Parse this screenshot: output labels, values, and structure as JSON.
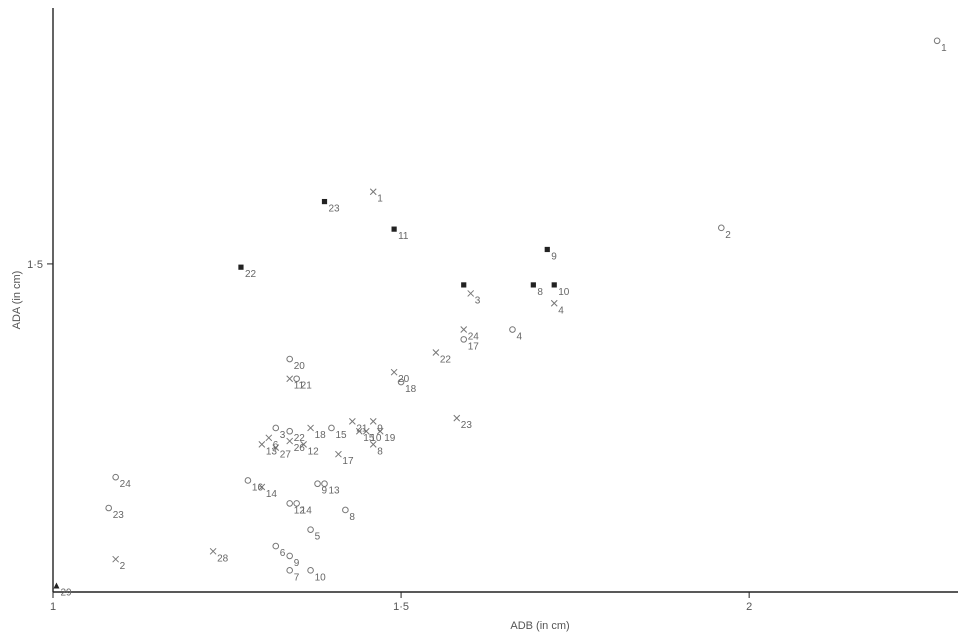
{
  "chart_data": {
    "type": "scatter",
    "title": "",
    "xlabel": "ADB (in cm)",
    "ylabel": "ADA (in cm)",
    "xlim": [
      1.0,
      2.3
    ],
    "ylim": [
      1.0,
      1.89
    ],
    "xticks": [
      {
        "value": 1.0,
        "label": "1"
      },
      {
        "value": 1.5,
        "label": "1·5"
      },
      {
        "value": 2.0,
        "label": "2"
      }
    ],
    "yticks": [
      {
        "value": 1.5,
        "label": "1·5"
      }
    ],
    "colors": {
      "axis": "#222222",
      "marker": "#777777",
      "square": "#222222",
      "text": "#666666"
    },
    "series": [
      {
        "marker": "circle",
        "points": [
          {
            "label": "1",
            "x": 2.27,
            "y": 1.84
          },
          {
            "label": "2",
            "x": 1.96,
            "y": 1.555
          },
          {
            "label": "4",
            "x": 1.66,
            "y": 1.4
          },
          {
            "label": "17",
            "x": 1.59,
            "y": 1.385
          },
          {
            "label": "18",
            "x": 1.5,
            "y": 1.32
          },
          {
            "label": "20",
            "x": 1.34,
            "y": 1.355
          },
          {
            "label": "21",
            "x": 1.35,
            "y": 1.325
          },
          {
            "label": "3",
            "x": 1.32,
            "y": 1.25
          },
          {
            "label": "22",
            "x": 1.34,
            "y": 1.245
          },
          {
            "label": "15",
            "x": 1.4,
            "y": 1.25
          },
          {
            "label": "9",
            "x": 1.38,
            "y": 1.165
          },
          {
            "label": "13",
            "x": 1.39,
            "y": 1.165
          },
          {
            "label": "12",
            "x": 1.34,
            "y": 1.135
          },
          {
            "label": "14",
            "x": 1.35,
            "y": 1.135
          },
          {
            "label": "16",
            "x": 1.28,
            "y": 1.17
          },
          {
            "label": "8",
            "x": 1.42,
            "y": 1.125
          },
          {
            "label": "5",
            "x": 1.37,
            "y": 1.095
          },
          {
            "label": "6",
            "x": 1.32,
            "y": 1.07
          },
          {
            "label": "9",
            "x": 1.34,
            "y": 1.055
          },
          {
            "label": "7",
            "x": 1.34,
            "y": 1.033
          },
          {
            "label": "10",
            "x": 1.37,
            "y": 1.033
          },
          {
            "label": "23",
            "x": 1.08,
            "y": 1.128
          },
          {
            "label": "24",
            "x": 1.09,
            "y": 1.175
          }
        ]
      },
      {
        "marker": "cross",
        "points": [
          {
            "label": "1",
            "x": 1.46,
            "y": 1.61
          },
          {
            "label": "3",
            "x": 1.6,
            "y": 1.455
          },
          {
            "label": "4",
            "x": 1.72,
            "y": 1.44
          },
          {
            "label": "24",
            "x": 1.59,
            "y": 1.4
          },
          {
            "label": "22",
            "x": 1.55,
            "y": 1.365
          },
          {
            "label": "20",
            "x": 1.49,
            "y": 1.335
          },
          {
            "label": "11",
            "x": 1.34,
            "y": 1.325
          },
          {
            "label": "23",
            "x": 1.58,
            "y": 1.265
          },
          {
            "label": "21",
            "x": 1.43,
            "y": 1.26
          },
          {
            "label": "9",
            "x": 1.46,
            "y": 1.26
          },
          {
            "label": "18",
            "x": 1.37,
            "y": 1.25
          },
          {
            "label": "15",
            "x": 1.44,
            "y": 1.245
          },
          {
            "label": "10",
            "x": 1.45,
            "y": 1.245
          },
          {
            "label": "19",
            "x": 1.47,
            "y": 1.245
          },
          {
            "label": "8",
            "x": 1.46,
            "y": 1.225
          },
          {
            "label": "6",
            "x": 1.31,
            "y": 1.235
          },
          {
            "label": "13",
            "x": 1.3,
            "y": 1.225
          },
          {
            "label": "27",
            "x": 1.32,
            "y": 1.22
          },
          {
            "label": "26",
            "x": 1.34,
            "y": 1.23
          },
          {
            "label": "12",
            "x": 1.36,
            "y": 1.225
          },
          {
            "label": "17",
            "x": 1.41,
            "y": 1.21
          },
          {
            "label": "14",
            "x": 1.3,
            "y": 1.16
          },
          {
            "label": "28",
            "x": 1.23,
            "y": 1.062
          },
          {
            "label": "2",
            "x": 1.09,
            "y": 1.05
          }
        ]
      },
      {
        "marker": "square",
        "points": [
          {
            "label": "23",
            "x": 1.39,
            "y": 1.595
          },
          {
            "label": "11",
            "x": 1.49,
            "y": 1.553
          },
          {
            "label": "9",
            "x": 1.71,
            "y": 1.522
          },
          {
            "label": "22",
            "x": 1.27,
            "y": 1.495
          },
          {
            "label": "",
            "x": 1.59,
            "y": 1.468
          },
          {
            "label": "8",
            "x": 1.69,
            "y": 1.468
          },
          {
            "label": "10",
            "x": 1.72,
            "y": 1.468
          }
        ]
      },
      {
        "marker": "triangle",
        "points": [
          {
            "label": "29",
            "x": 1.005,
            "y": 1.01
          }
        ]
      }
    ]
  }
}
